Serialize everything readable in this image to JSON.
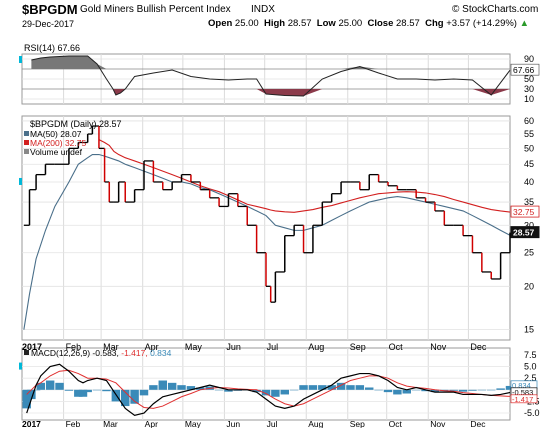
{
  "header": {
    "symbol": "$BPGDM",
    "name": "Gold Miners Bullish Percent Index",
    "exchange": "INDX",
    "date": "29-Dec-2017",
    "open_label": "Open",
    "open": "25.00",
    "high_label": "High",
    "high": "28.57",
    "low_label": "Low",
    "low": "25.00",
    "close_label": "Close",
    "close": "28.57",
    "chg_label": "Chg",
    "chg": "+3.57 (+14.29%)",
    "chg_arrow": "▲",
    "credit": "© StockCharts.com"
  },
  "colors": {
    "price_up": "#000000",
    "price_down": "#d00000",
    "ma50": "#4a6f8a",
    "ma200": "#d21f1f",
    "macd": "#000000",
    "signal": "#e03030",
    "hist": "#3a8ab8",
    "rsi_fill_high": "#777777",
    "rsi_fill_low": "#8b3a4a",
    "marker": "#00b8d8"
  },
  "chart_data": [
    {
      "type": "line",
      "panel": "RSI",
      "label": "RSI(14)",
      "value_text": "67.66",
      "ylim": [
        0,
        100
      ],
      "yticks": [
        10,
        30,
        50,
        70,
        90
      ],
      "last_label": "67.66",
      "x": [
        1,
        2,
        3,
        5,
        7,
        8,
        9,
        9.7,
        10,
        10.5,
        11,
        12,
        14,
        16,
        18,
        20,
        22,
        24,
        25,
        26,
        28,
        30,
        32,
        34,
        36,
        38,
        40,
        42,
        44,
        46,
        48,
        50,
        52
      ],
      "values": [
        88,
        92,
        94,
        96,
        96,
        80,
        50,
        30,
        18,
        22,
        30,
        55,
        62,
        68,
        55,
        50,
        48,
        50,
        50,
        20,
        17,
        16,
        50,
        65,
        75,
        62,
        50,
        50,
        48,
        50,
        48,
        18,
        67.66
      ]
    },
    {
      "type": "line",
      "panel": "price",
      "legend": [
        {
          "text": "$BPGDM (Daily) 28.57"
        },
        {
          "text": "MA(50) 28.07"
        },
        {
          "text": "MA(200) 32.75"
        },
        {
          "text": "Volume undef"
        }
      ],
      "ylim": [
        14,
        62
      ],
      "yticks": [
        15,
        20,
        25,
        30,
        35,
        40,
        45,
        50,
        55,
        60
      ],
      "last_labels": {
        "close": "28.57",
        "ma200": "32.75"
      },
      "x": [
        0.2,
        0.8,
        1.5,
        2.5,
        3.5,
        5,
        6,
        7,
        7.5,
        8.2,
        8.8,
        9.3,
        9.8,
        10.3,
        11,
        12,
        13,
        14,
        15,
        16,
        17,
        18,
        19,
        20,
        21,
        22,
        23,
        24,
        25,
        26,
        26.5,
        27,
        28,
        29,
        30,
        31,
        32,
        33,
        34,
        35,
        36,
        37,
        38,
        39,
        40,
        41,
        42,
        43,
        44,
        45,
        46,
        47,
        48,
        49,
        50,
        51,
        52
      ],
      "close": [
        30,
        38,
        42,
        45,
        45,
        50,
        52,
        55,
        58,
        50,
        40,
        35,
        35,
        40,
        35,
        38,
        46,
        40,
        38,
        40,
        42,
        40,
        38,
        36,
        34,
        37,
        34,
        30,
        25,
        20,
        18,
        22,
        28,
        30,
        25,
        30,
        35,
        37,
        40,
        40,
        38,
        42,
        40,
        39,
        38,
        38,
        36,
        35,
        33,
        30,
        30,
        28,
        25,
        22,
        21,
        25,
        28.57
      ],
      "ma50": [
        15,
        19,
        24,
        29,
        34,
        40,
        45,
        47,
        48,
        48,
        47.5,
        47,
        46.5,
        46,
        45,
        44,
        43,
        42,
        41,
        40,
        40,
        39.5,
        38.5,
        38,
        37,
        36,
        35,
        34,
        33,
        32,
        31,
        30,
        29.5,
        29,
        29,
        29.5,
        30,
        31,
        32,
        33,
        34,
        35,
        35.5,
        36,
        36.3,
        36,
        35.5,
        35,
        34.5,
        34,
        33.5,
        33,
        32,
        31,
        30,
        29,
        28.07
      ],
      "ma200": [
        null,
        null,
        null,
        null,
        null,
        null,
        null,
        null,
        null,
        53,
        52,
        51,
        49,
        48,
        47,
        46,
        45,
        44,
        43,
        42,
        41,
        40,
        39,
        38.2,
        37.5,
        36.5,
        35.5,
        34.5,
        34,
        33.5,
        33.2,
        33,
        32.8,
        32.7,
        33,
        33.3,
        33.8,
        34.2,
        34.8,
        35.4,
        36,
        36.5,
        37,
        37.2,
        37.4,
        37.5,
        37.4,
        37.2,
        36.8,
        36.3,
        35.6,
        35,
        34.4,
        33.8,
        33.3,
        33,
        32.75
      ],
      "x_tick_labels": [
        "2017",
        "Feb",
        "Mar",
        "Apr",
        "May",
        "Jun",
        "Jul",
        "Aug",
        "Sep",
        "Oct",
        "Nov",
        "Dec"
      ]
    },
    {
      "type": "line",
      "panel": "MACD",
      "label": "MACD(12,26,9)",
      "macd_text": "-0.583",
      "signal_text": "-1.417",
      "hist_text": "0.834",
      "ylim": [
        -6.5,
        9
      ],
      "yticks_text": [
        "7.5",
        "5.0",
        "2.5",
        "0.0",
        "-2.5",
        "-5.0"
      ],
      "yticks": [
        7.5,
        5.0,
        2.5,
        0.0,
        -2.5,
        -5.0
      ],
      "last_labels": [
        "0.834",
        "-0.583",
        "-1.417"
      ],
      "x": [
        0.5,
        1,
        1.5,
        2,
        3,
        4,
        5,
        6,
        6.5,
        7,
        8,
        9,
        10,
        11,
        12,
        13,
        14,
        15,
        16,
        17,
        18,
        19,
        20,
        21,
        22,
        23,
        24,
        25,
        26,
        27,
        28,
        29,
        30,
        31,
        32,
        33,
        34,
        35,
        36,
        37,
        38,
        39,
        40,
        41,
        42,
        43,
        44,
        45,
        46,
        47,
        48,
        49,
        50,
        51,
        52
      ],
      "macd": [
        -5,
        -2,
        1,
        3,
        5,
        5.5,
        4,
        2,
        1.5,
        2,
        2.5,
        2,
        -1,
        -4,
        -5.5,
        -5,
        -3,
        -1.5,
        -1,
        -0.5,
        0,
        0.5,
        1,
        0.5,
        0,
        0,
        0,
        -0.5,
        -2,
        -3.5,
        -4,
        -3.5,
        -2,
        -1,
        0,
        1,
        2.5,
        3,
        3.5,
        3.5,
        3,
        2,
        0.5,
        0,
        0.5,
        0,
        -0.5,
        -0.5,
        -0.5,
        -1,
        -1,
        -1,
        -1.2,
        -1,
        -0.583
      ],
      "signal": [
        -1,
        0,
        1,
        1.5,
        3,
        4,
        4.2,
        3.5,
        3,
        2.5,
        2.5,
        2.3,
        1.5,
        -0.5,
        -2.5,
        -3.8,
        -4,
        -3.5,
        -2.5,
        -1.5,
        -0.8,
        0,
        0.3,
        0.5,
        0.4,
        0.2,
        0.1,
        0,
        -0.8,
        -2,
        -3,
        -3.5,
        -3,
        -2,
        -1,
        0,
        1,
        2,
        2.5,
        3,
        3,
        2.5,
        1.5,
        0.8,
        0.5,
        0.3,
        0,
        -0.2,
        -0.3,
        -0.6,
        -0.8,
        -1,
        -1.2,
        -1.3,
        -1.417
      ],
      "x_tick_labels": [
        "2017",
        "Feb",
        "Mar",
        "Apr",
        "May",
        "Jun",
        "Jul",
        "Aug",
        "Sep",
        "Oct",
        "Nov",
        "Dec"
      ]
    }
  ]
}
